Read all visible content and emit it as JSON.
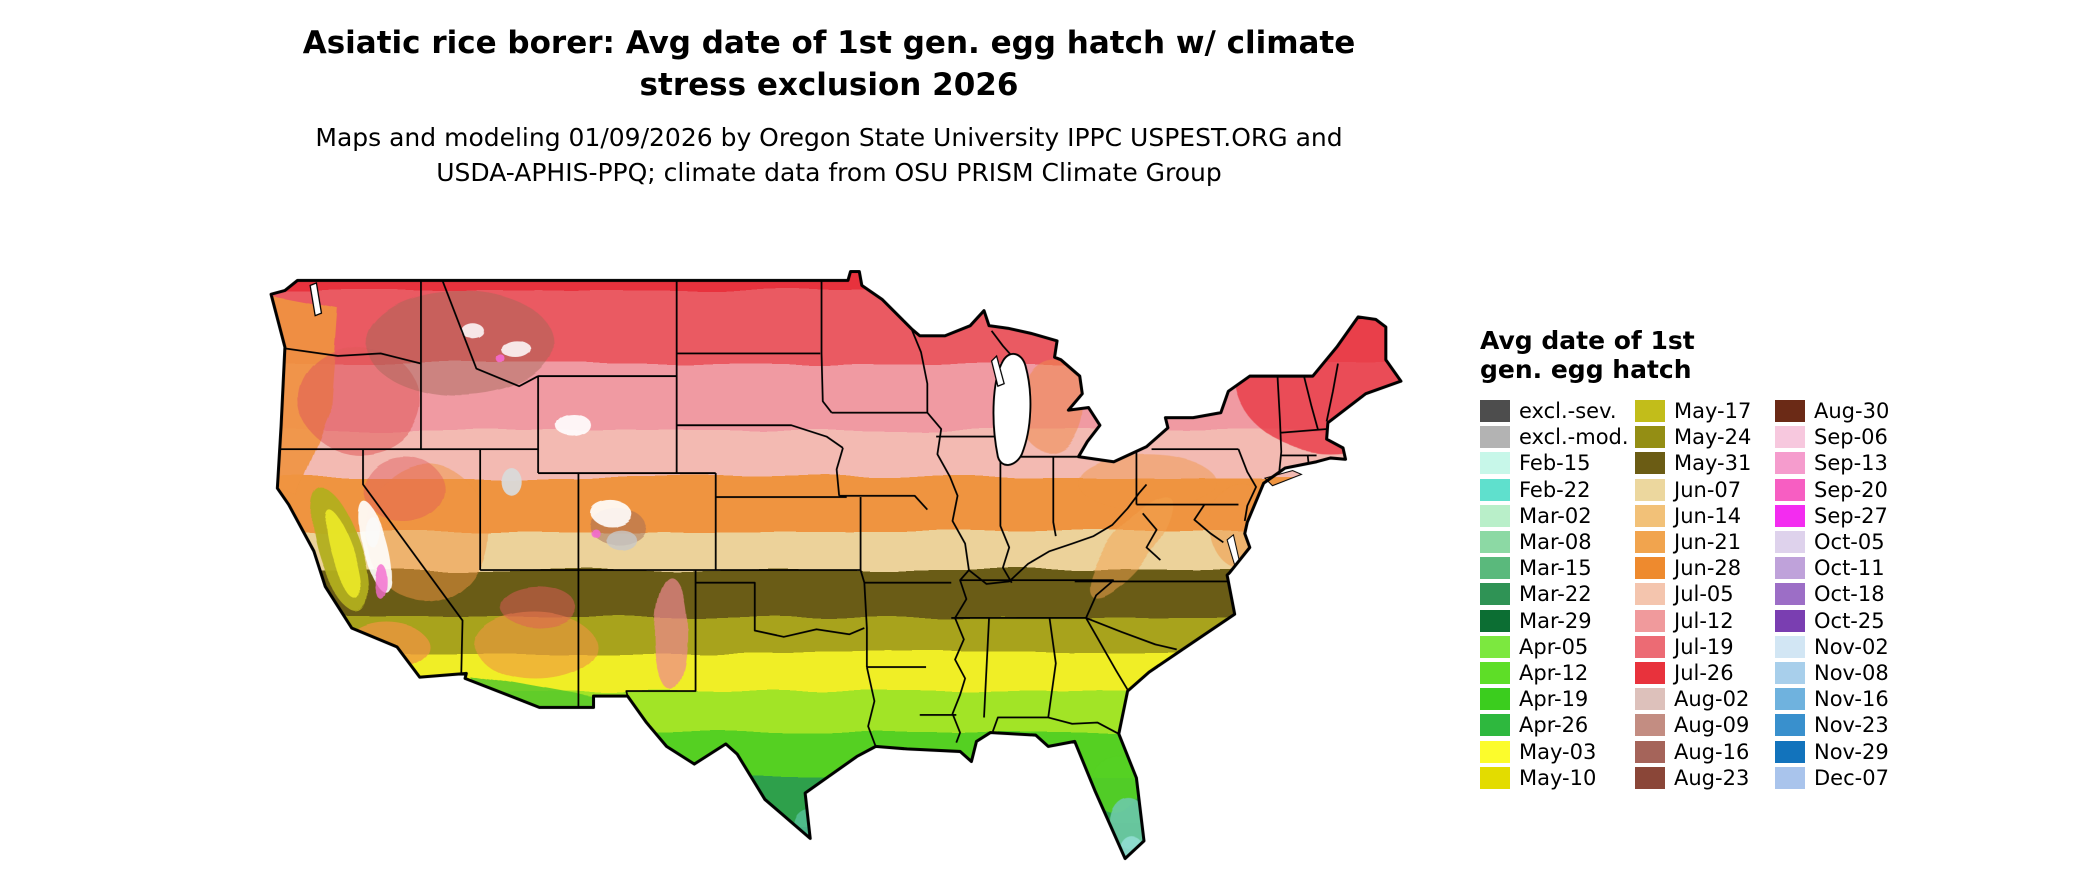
{
  "title": {
    "line1": "Asiatic rice borer: Avg date of 1st gen. egg hatch w/ climate",
    "line2": "stress exclusion 2026"
  },
  "subtitle": {
    "line1": "Maps and modeling 01/09/2026 by Oregon State University IPPC USPEST.ORG and",
    "line2": "USDA-APHIS-PPQ; climate data from OSU PRISM Climate Group"
  },
  "legend": {
    "title_line1": "Avg date of 1st",
    "title_line2": "gen. egg hatch",
    "columns": [
      {
        "entries": [
          {
            "label": "excl.-sev.",
            "color": "#4d4d4d"
          },
          {
            "label": "excl.-mod.",
            "color": "#b3b3b3"
          },
          {
            "label": "Feb-15",
            "color": "#c7f7e9"
          },
          {
            "label": "Feb-22",
            "color": "#5fe0cd"
          },
          {
            "label": "Mar-02",
            "color": "#b9efc9"
          },
          {
            "label": "Mar-08",
            "color": "#8cd9a4"
          },
          {
            "label": "Mar-15",
            "color": "#5ab97c"
          },
          {
            "label": "Mar-22",
            "color": "#2f9355"
          },
          {
            "label": "Mar-29",
            "color": "#0c6e33"
          },
          {
            "label": "Apr-05",
            "color": "#7ce83f"
          },
          {
            "label": "Apr-12",
            "color": "#5ede27"
          },
          {
            "label": "Apr-19",
            "color": "#3bcd1e"
          },
          {
            "label": "Apr-26",
            "color": "#2eb83e"
          },
          {
            "label": "May-03",
            "color": "#fcfc2c"
          },
          {
            "label": "May-10",
            "color": "#e3dc00"
          }
        ]
      },
      {
        "entries": [
          {
            "label": "May-17",
            "color": "#c2bd1a"
          },
          {
            "label": "May-24",
            "color": "#948e14"
          },
          {
            "label": "May-31",
            "color": "#6b5c14"
          },
          {
            "label": "Jun-07",
            "color": "#ecd79e"
          },
          {
            "label": "Jun-14",
            "color": "#f2c178"
          },
          {
            "label": "Jun-21",
            "color": "#f1a44e"
          },
          {
            "label": "Jun-28",
            "color": "#ee8a2e"
          },
          {
            "label": "Jul-05",
            "color": "#f4c5ae"
          },
          {
            "label": "Jul-12",
            "color": "#f09a9c"
          },
          {
            "label": "Jul-19",
            "color": "#ec6b74"
          },
          {
            "label": "Jul-26",
            "color": "#e8323c"
          },
          {
            "label": "Aug-02",
            "color": "#ddc1bb"
          },
          {
            "label": "Aug-09",
            "color": "#c38d82"
          },
          {
            "label": "Aug-16",
            "color": "#a5645a"
          },
          {
            "label": "Aug-23",
            "color": "#8a4638"
          }
        ]
      },
      {
        "entries": [
          {
            "label": "Aug-30",
            "color": "#6b2a16"
          },
          {
            "label": "Sep-06",
            "color": "#f7c8de"
          },
          {
            "label": "Sep-13",
            "color": "#f59ccd"
          },
          {
            "label": "Sep-20",
            "color": "#f75ec2"
          },
          {
            "label": "Sep-27",
            "color": "#f32cf0"
          },
          {
            "label": "Oct-05",
            "color": "#ded2ec"
          },
          {
            "label": "Oct-11",
            "color": "#bfa2da"
          },
          {
            "label": "Oct-18",
            "color": "#9c6ec6"
          },
          {
            "label": "Oct-25",
            "color": "#7a3eb1"
          },
          {
            "label": "Nov-02",
            "color": "#d2e6f4"
          },
          {
            "label": "Nov-08",
            "color": "#a8cfeb"
          },
          {
            "label": "Nov-16",
            "color": "#6fb2de"
          },
          {
            "label": "Nov-23",
            "color": "#3990cd"
          },
          {
            "label": "Nov-29",
            "color": "#1273bc"
          },
          {
            "label": "Dec-07",
            "color": "#a9c4ec"
          }
        ]
      }
    ]
  },
  "map": {
    "region": "Continental United States",
    "bands": [
      {
        "from": 0.0,
        "to": 0.092,
        "color": "#e8323c",
        "meaning": "Jul-26"
      },
      {
        "from": 0.092,
        "to": 0.204,
        "color": "#ea5a62",
        "meaning": "Jul-19"
      },
      {
        "from": 0.204,
        "to": 0.306,
        "color": "#f09aa2",
        "meaning": "Jul-12"
      },
      {
        "from": 0.306,
        "to": 0.377,
        "color": "#f3bab2",
        "meaning": "Jul-05"
      },
      {
        "from": 0.377,
        "to": 0.46,
        "color": "#ef9440",
        "meaning": "Jun-21/28"
      },
      {
        "from": 0.46,
        "to": 0.519,
        "color": "#ecd29a",
        "meaning": "Jun-07/14"
      },
      {
        "from": 0.519,
        "to": 0.592,
        "color": "#6b5c14",
        "meaning": "May-31"
      },
      {
        "from": 0.592,
        "to": 0.646,
        "color": "#a8a31c",
        "meaning": "May-17/24"
      },
      {
        "from": 0.646,
        "to": 0.704,
        "color": "#f0ee28",
        "meaning": "May-03/10"
      },
      {
        "from": 0.704,
        "to": 0.765,
        "color": "#a2e428",
        "meaning": "Apr-19/26"
      },
      {
        "from": 0.765,
        "to": 0.837,
        "color": "#55d022",
        "meaning": "Apr-05/12"
      },
      {
        "from": 0.837,
        "to": 0.908,
        "color": "#2fa04c",
        "meaning": "Mar-22/29"
      },
      {
        "from": 0.908,
        "to": 1.0,
        "color": "#1c7a40",
        "meaning": "Mar-15"
      }
    ],
    "patch_colors": {
      "orange": "#ef9440",
      "red_soft": "#e05a5a",
      "brown": "#a06858",
      "rosy": "#ee8890",
      "olive": "#b2ae1e",
      "yellow": "#ecea2a",
      "bright_green": "#55d022",
      "yellow_green": "#9ae22e",
      "teal": "#6cc9a2",
      "aqua": "#8fdcd0",
      "dark_teal": "#56c09a",
      "white": "#ffffff",
      "gray": "#c8c8c8",
      "magenta": "#f46ad0",
      "new_england_red": "#e83844",
      "mich_orange": "#ef8a50",
      "appalachia_orange": "#f2a24e",
      "green_border": "#55c828",
      "lake_gray": "#d9d9d9"
    }
  }
}
